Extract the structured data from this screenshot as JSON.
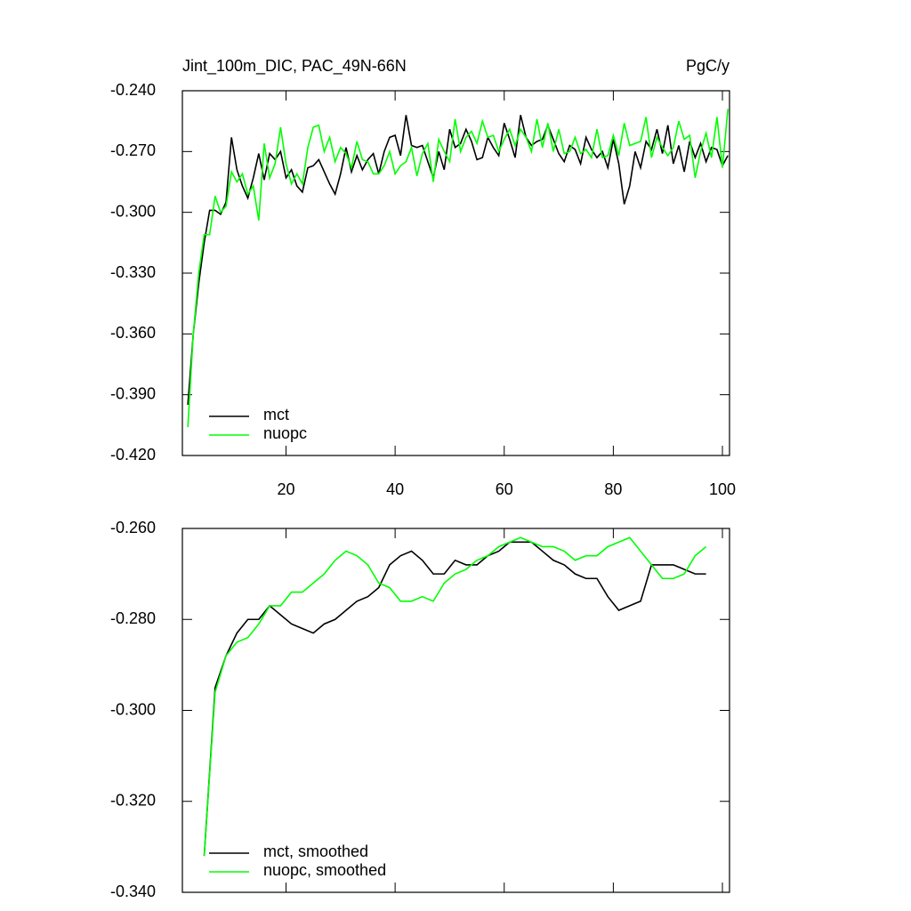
{
  "chart_data": [
    {
      "type": "line",
      "title": "Jint_100m_DIC, PAC_49N-66N",
      "units_label": "PgC/y",
      "x": [
        2,
        3,
        4,
        5,
        6,
        7,
        8,
        9,
        10,
        11,
        12,
        13,
        14,
        15,
        16,
        17,
        18,
        19,
        20,
        21,
        22,
        23,
        24,
        25,
        26,
        27,
        28,
        29,
        30,
        31,
        32,
        33,
        34,
        35,
        36,
        37,
        38,
        39,
        40,
        41,
        42,
        43,
        44,
        45,
        46,
        47,
        48,
        49,
        50,
        51,
        52,
        53,
        54,
        55,
        56,
        57,
        58,
        59,
        60,
        61,
        62,
        63,
        64,
        65,
        66,
        67,
        68,
        69,
        70,
        71,
        72,
        73,
        74,
        75,
        76,
        77,
        78,
        79,
        80,
        81,
        82,
        83,
        84,
        85,
        86,
        87,
        88,
        89,
        90,
        91,
        92,
        93,
        94,
        95,
        96,
        97,
        98,
        99,
        100,
        101
      ],
      "series": [
        {
          "name": "mct",
          "color": "#000000",
          "values": [
            -0.395,
            -0.36,
            -0.335,
            -0.315,
            -0.299,
            -0.299,
            -0.301,
            -0.295,
            -0.263,
            -0.279,
            -0.287,
            -0.293,
            -0.283,
            -0.271,
            -0.284,
            -0.271,
            -0.274,
            -0.27,
            -0.283,
            -0.279,
            -0.287,
            -0.29,
            -0.278,
            -0.277,
            -0.274,
            -0.28,
            -0.286,
            -0.291,
            -0.281,
            -0.268,
            -0.28,
            -0.272,
            -0.279,
            -0.274,
            -0.271,
            -0.281,
            -0.27,
            -0.263,
            -0.262,
            -0.272,
            -0.252,
            -0.267,
            -0.268,
            -0.267,
            -0.275,
            -0.283,
            -0.27,
            -0.279,
            -0.259,
            -0.268,
            -0.266,
            -0.259,
            -0.265,
            -0.274,
            -0.273,
            -0.263,
            -0.268,
            -0.272,
            -0.256,
            -0.264,
            -0.273,
            -0.252,
            -0.263,
            -0.267,
            -0.265,
            -0.264,
            -0.257,
            -0.264,
            -0.271,
            -0.275,
            -0.267,
            -0.269,
            -0.276,
            -0.263,
            -0.269,
            -0.273,
            -0.27,
            -0.278,
            -0.264,
            -0.276,
            -0.296,
            -0.287,
            -0.27,
            -0.278,
            -0.265,
            -0.269,
            -0.259,
            -0.271,
            -0.257,
            -0.276,
            -0.267,
            -0.28,
            -0.265,
            -0.273,
            -0.266,
            -0.275,
            -0.268,
            -0.269,
            -0.277,
            -0.272
          ]
        },
        {
          "name": "nuopc",
          "color": "#00ff00",
          "values": [
            -0.406,
            -0.36,
            -0.33,
            -0.311,
            -0.311,
            -0.292,
            -0.3,
            -0.297,
            -0.28,
            -0.285,
            -0.281,
            -0.291,
            -0.287,
            -0.304,
            -0.266,
            -0.283,
            -0.276,
            -0.258,
            -0.276,
            -0.286,
            -0.281,
            -0.286,
            -0.268,
            -0.258,
            -0.257,
            -0.27,
            -0.263,
            -0.275,
            -0.268,
            -0.271,
            -0.278,
            -0.265,
            -0.274,
            -0.275,
            -0.281,
            -0.281,
            -0.277,
            -0.27,
            -0.281,
            -0.277,
            -0.275,
            -0.268,
            -0.282,
            -0.271,
            -0.266,
            -0.285,
            -0.264,
            -0.27,
            -0.275,
            -0.254,
            -0.27,
            -0.263,
            -0.26,
            -0.266,
            -0.255,
            -0.263,
            -0.262,
            -0.27,
            -0.264,
            -0.259,
            -0.267,
            -0.259,
            -0.263,
            -0.27,
            -0.254,
            -0.268,
            -0.256,
            -0.27,
            -0.259,
            -0.271,
            -0.27,
            -0.263,
            -0.271,
            -0.269,
            -0.273,
            -0.259,
            -0.273,
            -0.272,
            -0.262,
            -0.272,
            -0.256,
            -0.267,
            -0.266,
            -0.265,
            -0.253,
            -0.273,
            -0.263,
            -0.268,
            -0.272,
            -0.268,
            -0.255,
            -0.264,
            -0.262,
            -0.283,
            -0.27,
            -0.261,
            -0.273,
            -0.253,
            -0.278,
            -0.249
          ]
        }
      ],
      "xlim": [
        1,
        101.3
      ],
      "xticks": [
        20,
        40,
        60,
        80,
        100
      ],
      "show_xtick_labels": true,
      "ylim": [
        -0.42,
        -0.24
      ],
      "yticks": [
        {
          "value": -0.42,
          "label": "-0.420"
        },
        {
          "value": -0.39,
          "label": "-0.390"
        },
        {
          "value": -0.36,
          "label": "-0.360"
        },
        {
          "value": -0.33,
          "label": "-0.330"
        },
        {
          "value": -0.3,
          "label": "-0.300"
        },
        {
          "value": -0.27,
          "label": "-0.270"
        },
        {
          "value": -0.24,
          "label": "-0.240"
        }
      ],
      "legend": "lower left",
      "grid": false
    },
    {
      "type": "line",
      "x": [
        5,
        7,
        9,
        11,
        13,
        15,
        17,
        19,
        21,
        23,
        25,
        27,
        29,
        31,
        33,
        35,
        37,
        39,
        41,
        43,
        45,
        47,
        49,
        51,
        53,
        55,
        57,
        59,
        61,
        63,
        65,
        67,
        69,
        71,
        73,
        75,
        77,
        79,
        81,
        83,
        85,
        87,
        89,
        91,
        93,
        95,
        97
      ],
      "series": [
        {
          "name": "mct, smoothed",
          "color": "#000000",
          "values": [
            -0.332,
            -0.295,
            -0.288,
            -0.283,
            -0.28,
            -0.28,
            -0.277,
            -0.279,
            -0.281,
            -0.282,
            -0.283,
            -0.281,
            -0.28,
            -0.278,
            -0.276,
            -0.275,
            -0.273,
            -0.268,
            -0.266,
            -0.265,
            -0.267,
            -0.27,
            -0.27,
            -0.267,
            -0.268,
            -0.268,
            -0.266,
            -0.265,
            -0.263,
            -0.263,
            -0.263,
            -0.265,
            -0.267,
            -0.268,
            -0.27,
            -0.271,
            -0.271,
            -0.275,
            -0.278,
            -0.277,
            -0.276,
            -0.268,
            -0.268,
            -0.268,
            -0.269,
            -0.27,
            -0.27
          ]
        },
        {
          "name": "nuopc, smoothed",
          "color": "#00ff00",
          "values": [
            -0.332,
            -0.296,
            -0.288,
            -0.285,
            -0.284,
            -0.281,
            -0.277,
            -0.277,
            -0.274,
            -0.274,
            -0.272,
            -0.27,
            -0.267,
            -0.265,
            -0.266,
            -0.268,
            -0.272,
            -0.273,
            -0.276,
            -0.276,
            -0.275,
            -0.276,
            -0.272,
            -0.27,
            -0.269,
            -0.267,
            -0.266,
            -0.264,
            -0.263,
            -0.262,
            -0.263,
            -0.264,
            -0.264,
            -0.265,
            -0.267,
            -0.266,
            -0.266,
            -0.264,
            -0.263,
            -0.262,
            -0.265,
            -0.268,
            -0.271,
            -0.271,
            -0.27,
            -0.266,
            -0.264
          ]
        }
      ],
      "xlim": [
        1,
        101.3
      ],
      "xticks": [
        20,
        40,
        60,
        80,
        100
      ],
      "show_xtick_labels": false,
      "ylim": [
        -0.34,
        -0.26
      ],
      "yticks": [
        {
          "value": -0.34,
          "label": "-0.340"
        },
        {
          "value": -0.32,
          "label": "-0.320"
        },
        {
          "value": -0.3,
          "label": "-0.300"
        },
        {
          "value": -0.28,
          "label": "-0.280"
        },
        {
          "value": -0.26,
          "label": "-0.260"
        }
      ],
      "legend": "lower left",
      "grid": false
    }
  ]
}
